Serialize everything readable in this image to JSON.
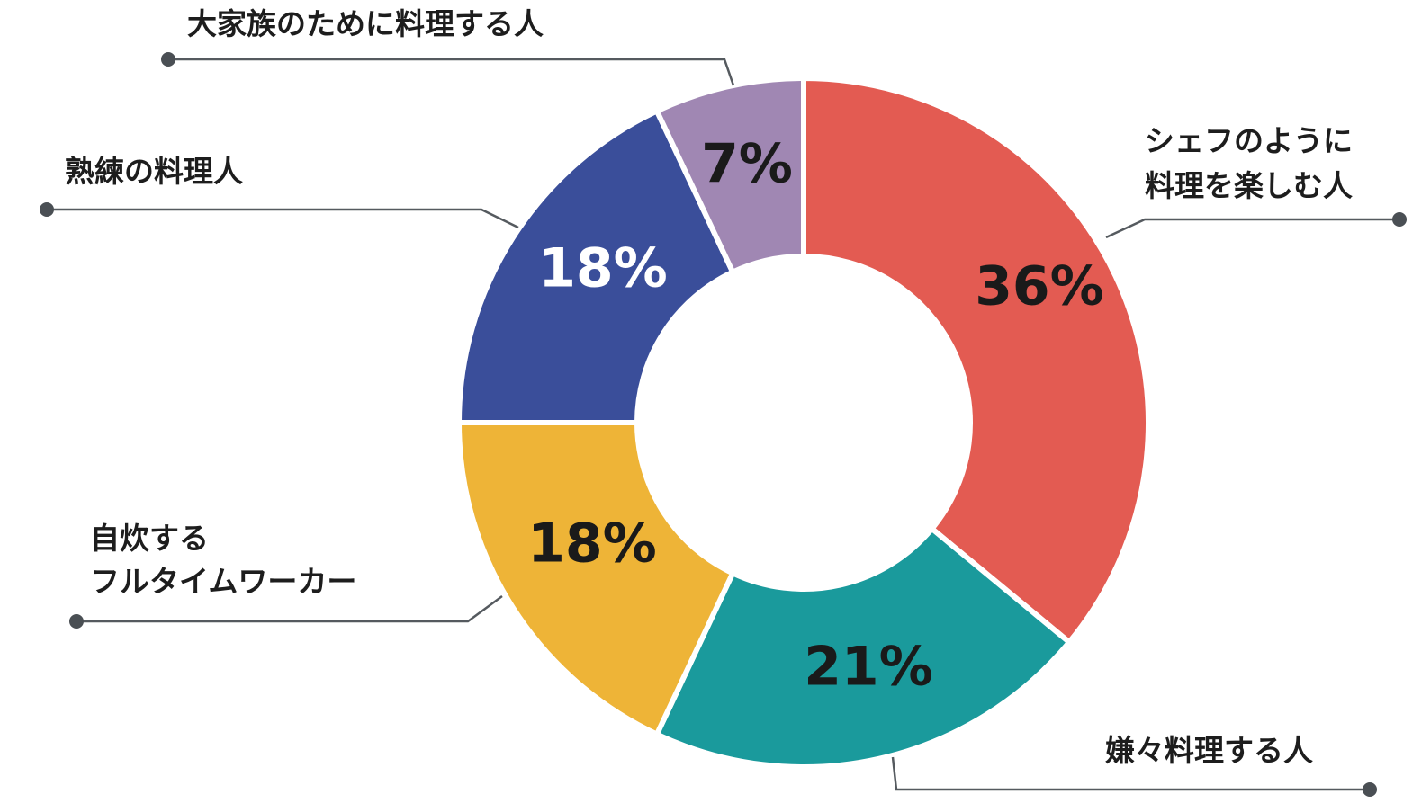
{
  "chart_data": {
    "type": "pie",
    "donut": true,
    "slices": [
      {
        "label_lines": [
          "シェフのように",
          "料理を楽しむ人"
        ],
        "value": 36,
        "value_label": "36%",
        "color": "#e35b52",
        "value_color": "#1a1a1a"
      },
      {
        "label_lines": [
          "嫌々料理する人"
        ],
        "value": 21,
        "value_label": "21%",
        "color": "#1a9a9c",
        "value_color": "#1a1a1a"
      },
      {
        "label_lines": [
          "自炊する",
          "フルタイムワーカー"
        ],
        "value": 18,
        "value_label": "18%",
        "color": "#eeb437",
        "value_color": "#1a1a1a"
      },
      {
        "label_lines": [
          "熟練の料理人"
        ],
        "value": 18,
        "value_label": "18%",
        "color": "#3a4e9a",
        "value_color": "#ffffff"
      },
      {
        "label_lines": [
          "大家族のために料理する人"
        ],
        "value": 7,
        "value_label": "7%",
        "color": "#a087b3",
        "value_color": "#1a1a1a"
      }
    ],
    "start": "12 o'clock",
    "direction": "clockwise",
    "legend": "callout labels with leader lines"
  }
}
